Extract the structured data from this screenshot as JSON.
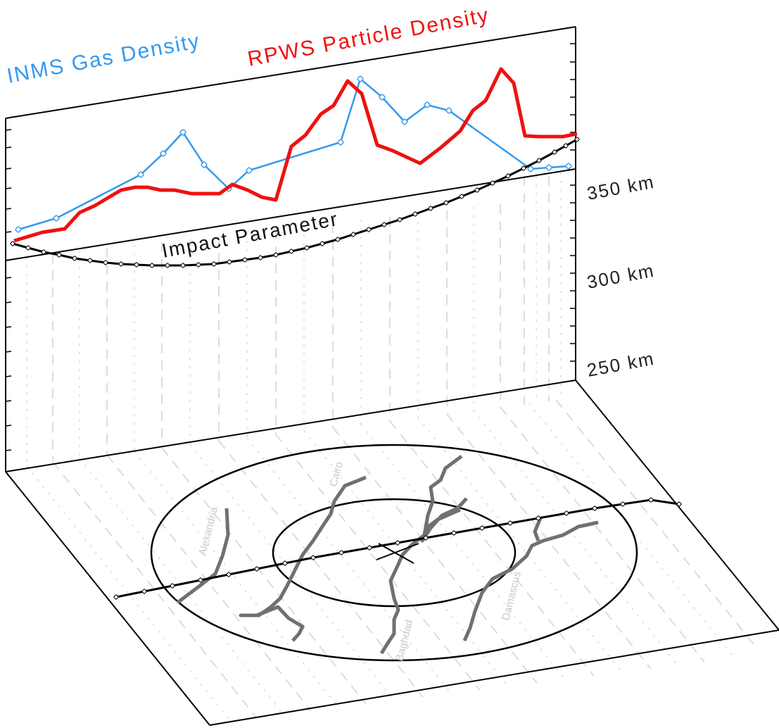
{
  "colors": {
    "inms": "#3399ee",
    "rpws": "#ee1111",
    "impact": "#000000",
    "grid": "#dcdcdc",
    "track": "#707070",
    "city_label": "#c8c8c8"
  },
  "legend": {
    "inms_label": "INMS Gas Density",
    "rpws_label": "RPWS Particle Density"
  },
  "impact_label": "Impact Parameter",
  "axis": {
    "labels": [
      "350 km",
      "300 km",
      "250 km"
    ]
  },
  "cities": [
    "Alexandria",
    "Cairo",
    "Baghdad",
    "Damascus"
  ],
  "icons": {
    "inms_marker": "diamond-marker-icon",
    "impact_marker": "diamond-marker-icon"
  }
}
